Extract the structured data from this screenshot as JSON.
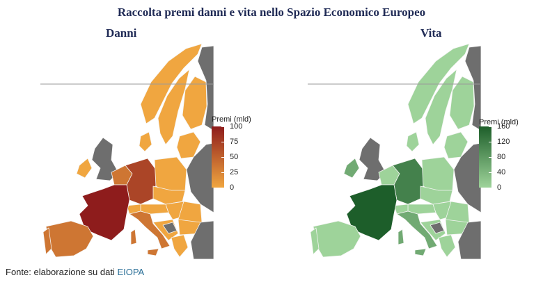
{
  "title": "Raccolta premi danni e vita nello Spazio Economico Europeo",
  "maps": {
    "danni": {
      "title": "Danni",
      "legend_title": "Premi (mld)",
      "scale_min": 0,
      "scale_max": 100,
      "ticks": [
        "100",
        "75",
        "50",
        "25",
        "0"
      ],
      "tick_values": [
        100,
        75,
        50,
        25,
        0
      ],
      "color_low": "#f0a640",
      "color_high": "#8e1c1c",
      "no_data_color": "#6e6e6e",
      "border_color": "#f5f5f5"
    },
    "vita": {
      "title": "Vita",
      "legend_title": "Premi (mld)",
      "scale_min": 0,
      "scale_max": 160,
      "ticks": [
        "160",
        "120",
        "80",
        "40",
        "0"
      ],
      "tick_values": [
        160,
        120,
        80,
        40,
        0
      ],
      "color_low": "#9ed39a",
      "color_high": "#1d5e2a",
      "no_data_color": "#6e6e6e",
      "border_color": "#f5f5f5"
    }
  },
  "source": {
    "prefix": "Fonte: elaborazione su dati ",
    "link": "EIOPA",
    "link_color": "#2a6f97"
  }
}
